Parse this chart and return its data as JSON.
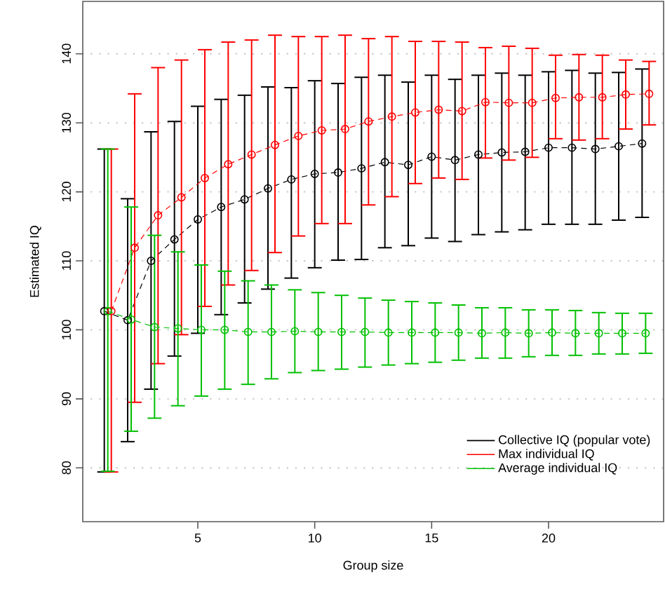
{
  "chart_data": {
    "type": "line",
    "xlabel": "Group size",
    "ylabel": "Estimated IQ",
    "xlim": [
      0.08,
      24.92
    ],
    "ylim": [
      72.2,
      147.6
    ],
    "xticks": [
      5,
      10,
      15,
      20
    ],
    "yticks": [
      80,
      90,
      100,
      110,
      120,
      130,
      140
    ],
    "grid": "y",
    "legend": "bottom right",
    "marker": "circle",
    "line_style": "dashed",
    "series": [
      {
        "name": "Collective IQ (popular vote)",
        "color": "#000000",
        "x": [
          1,
          2,
          3,
          4,
          5,
          6,
          7,
          8,
          9,
          10,
          11,
          12,
          13,
          14,
          15,
          16,
          17,
          18,
          19,
          20,
          21,
          22,
          23,
          24
        ],
        "values": [
          102.7,
          101.4,
          110.0,
          113.1,
          116.0,
          117.8,
          118.9,
          120.5,
          121.8,
          122.6,
          122.8,
          123.4,
          124.3,
          123.9,
          125.1,
          124.6,
          125.4,
          125.7,
          125.8,
          126.4,
          126.4,
          126.2,
          126.6,
          127.0
        ],
        "errors": [
          [
            79.4,
            126.2
          ],
          [
            83.8,
            119.0
          ],
          [
            91.4,
            128.7
          ],
          [
            96.2,
            130.2
          ],
          [
            99.5,
            132.4
          ],
          [
            102.2,
            133.4
          ],
          [
            103.9,
            134.0
          ],
          [
            105.9,
            135.2
          ],
          [
            107.5,
            135.1
          ],
          [
            109.0,
            136.1
          ],
          [
            110.1,
            135.7
          ],
          [
            110.2,
            136.6
          ],
          [
            111.9,
            136.9
          ],
          [
            112.2,
            135.9
          ],
          [
            113.3,
            136.9
          ],
          [
            112.8,
            136.3
          ],
          [
            113.8,
            136.9
          ],
          [
            114.2,
            137.2
          ],
          [
            114.5,
            136.9
          ],
          [
            115.3,
            137.4
          ],
          [
            115.3,
            137.6
          ],
          [
            115.3,
            137.2
          ],
          [
            115.9,
            137.3
          ],
          [
            116.3,
            137.8
          ]
        ]
      },
      {
        "name": "Max individual IQ",
        "color": "#ff0000",
        "x": [
          1.3,
          2.3,
          3.3,
          4.3,
          5.3,
          6.3,
          7.3,
          8.3,
          9.3,
          10.3,
          11.3,
          12.3,
          13.3,
          14.3,
          15.3,
          16.3,
          17.3,
          18.3,
          19.3,
          20.3,
          21.3,
          22.3,
          23.3,
          24.3
        ],
        "values": [
          102.7,
          111.9,
          116.6,
          119.2,
          122.0,
          124.0,
          125.4,
          126.8,
          128.1,
          128.9,
          129.1,
          130.2,
          130.9,
          131.5,
          131.9,
          131.7,
          133.0,
          132.9,
          132.9,
          133.6,
          133.7,
          133.7,
          134.1,
          134.2
        ],
        "errors": [
          [
            79.4,
            126.2
          ],
          [
            89.5,
            134.2
          ],
          [
            95.1,
            138.0
          ],
          [
            99.3,
            139.1
          ],
          [
            103.4,
            140.6
          ],
          [
            106.5,
            141.7
          ],
          [
            108.6,
            142.0
          ],
          [
            111.2,
            142.7
          ],
          [
            113.6,
            142.5
          ],
          [
            115.4,
            142.5
          ],
          [
            115.4,
            142.7
          ],
          [
            118.1,
            142.2
          ],
          [
            119.3,
            142.5
          ],
          [
            121.2,
            141.8
          ],
          [
            122.0,
            141.8
          ],
          [
            121.8,
            141.7
          ],
          [
            124.9,
            140.9
          ],
          [
            124.6,
            141.1
          ],
          [
            125.0,
            140.8
          ],
          [
            127.7,
            139.8
          ],
          [
            127.5,
            139.9
          ],
          [
            127.7,
            139.8
          ],
          [
            129.1,
            139.1
          ],
          [
            129.7,
            138.9
          ]
        ]
      },
      {
        "name": "Average individual IQ",
        "color": "#00c000",
        "x": [
          1.15,
          2.15,
          3.15,
          4.15,
          5.15,
          6.15,
          7.15,
          8.15,
          9.15,
          10.15,
          11.15,
          12.15,
          13.15,
          14.15,
          15.15,
          16.15,
          17.15,
          18.15,
          19.15,
          20.15,
          21.15,
          22.15,
          23.15,
          24.15
        ],
        "values": [
          102.7,
          101.5,
          100.4,
          100.2,
          100.0,
          100.0,
          99.7,
          99.7,
          99.8,
          99.7,
          99.7,
          99.7,
          99.6,
          99.6,
          99.6,
          99.6,
          99.5,
          99.6,
          99.5,
          99.6,
          99.5,
          99.5,
          99.5,
          99.5
        ],
        "errors": [
          [
            79.5,
            126.2
          ],
          [
            85.3,
            117.8
          ],
          [
            87.2,
            113.7
          ],
          [
            89.0,
            111.3
          ],
          [
            90.4,
            109.4
          ],
          [
            91.4,
            108.5
          ],
          [
            92.1,
            107.1
          ],
          [
            92.9,
            106.5
          ],
          [
            93.8,
            105.8
          ],
          [
            94.1,
            105.4
          ],
          [
            94.3,
            105.0
          ],
          [
            94.6,
            104.6
          ],
          [
            94.9,
            104.3
          ],
          [
            95.1,
            104.1
          ],
          [
            95.3,
            103.9
          ],
          [
            95.6,
            103.6
          ],
          [
            95.9,
            103.2
          ],
          [
            95.9,
            103.2
          ],
          [
            96.1,
            102.9
          ],
          [
            96.3,
            102.9
          ],
          [
            96.3,
            102.8
          ],
          [
            96.5,
            102.5
          ],
          [
            96.5,
            102.4
          ],
          [
            96.6,
            102.4
          ]
        ]
      }
    ]
  }
}
